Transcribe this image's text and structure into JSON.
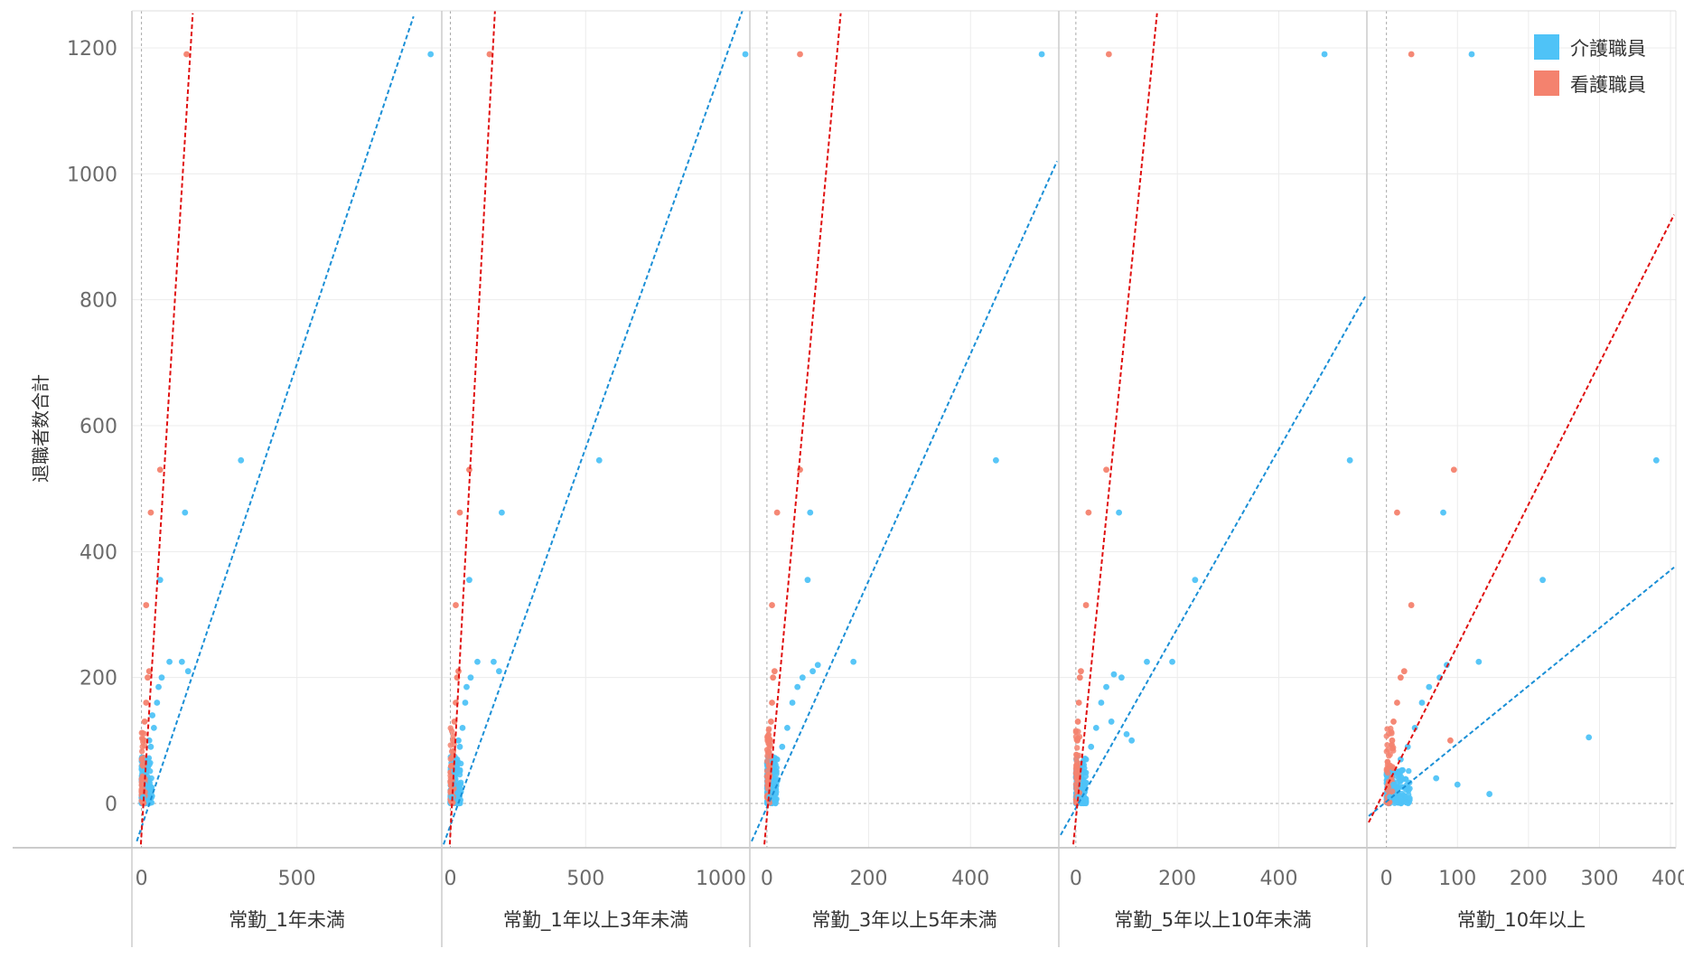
{
  "chart_data": {
    "type": "scatter",
    "ylabel": "退職者数合計",
    "ylim": [
      -65,
      1255
    ],
    "yticks": [
      0,
      200,
      400,
      600,
      800,
      1000,
      1200
    ],
    "grid": true,
    "legend": {
      "placement": "top-right",
      "items": [
        {
          "label": "介護職員",
          "color": "#4FC3F7"
        },
        {
          "label": "看護職員",
          "color": "#F4826E"
        }
      ]
    },
    "colors": {
      "care": "#4FC3F7",
      "nurse": "#F4826E",
      "care_trend": "#1A8FD6",
      "nurse_trend": "#E01010"
    },
    "panels": [
      {
        "xlabel": "常勤_1年未満",
        "xlim": [
          -25,
          960
        ],
        "xticks": [
          0,
          500
        ],
        "care_points": [
          [
            930,
            1190
          ],
          [
            320,
            545
          ],
          [
            140,
            462
          ],
          [
            60,
            355
          ],
          [
            90,
            225
          ],
          [
            130,
            225
          ],
          [
            150,
            210
          ],
          [
            65,
            200
          ],
          [
            55,
            185
          ],
          [
            50,
            160
          ],
          [
            40,
            120
          ],
          [
            30,
            90
          ],
          [
            20,
            70
          ],
          [
            15,
            50
          ],
          [
            10,
            30
          ],
          [
            5,
            10
          ],
          [
            8,
            60
          ],
          [
            25,
            100
          ],
          [
            35,
            140
          ]
        ],
        "nurse_points": [
          [
            145,
            1190
          ],
          [
            60,
            530
          ],
          [
            30,
            462
          ],
          [
            15,
            315
          ],
          [
            25,
            210
          ],
          [
            20,
            200
          ],
          [
            15,
            160
          ],
          [
            10,
            130
          ],
          [
            8,
            100
          ],
          [
            5,
            60
          ],
          [
            3,
            30
          ]
        ],
        "care_trend": [
          -15,
          -60,
          875,
          1250
        ],
        "nurse_trend": [
          -2,
          -65,
          165,
          1255
        ]
      },
      {
        "xlabel": "常勤_1年以上3年未満",
        "xlim": [
          -25,
          1100
        ],
        "xticks": [
          0,
          500,
          1000
        ],
        "care_points": [
          [
            1090,
            1190
          ],
          [
            550,
            545
          ],
          [
            190,
            462
          ],
          [
            70,
            355
          ],
          [
            100,
            225
          ],
          [
            160,
            225
          ],
          [
            180,
            210
          ],
          [
            75,
            200
          ],
          [
            60,
            185
          ],
          [
            55,
            160
          ],
          [
            45,
            120
          ],
          [
            35,
            90
          ],
          [
            25,
            70
          ],
          [
            15,
            50
          ],
          [
            10,
            30
          ],
          [
            5,
            10
          ],
          [
            30,
            100
          ]
        ],
        "nurse_points": [
          [
            145,
            1190
          ],
          [
            70,
            530
          ],
          [
            35,
            462
          ],
          [
            20,
            315
          ],
          [
            30,
            210
          ],
          [
            25,
            200
          ],
          [
            20,
            160
          ],
          [
            15,
            130
          ],
          [
            10,
            100
          ],
          [
            5,
            60
          ],
          [
            3,
            30
          ]
        ],
        "care_trend": [
          -25,
          -65,
          1080,
          1260
        ],
        "nurse_trend": [
          -2,
          -65,
          165,
          1260
        ]
      },
      {
        "xlabel": "常勤_3年以上5年未満",
        "xlim": [
          -30,
          570
        ],
        "xticks": [
          0,
          200,
          400
        ],
        "care_points": [
          [
            540,
            1190
          ],
          [
            450,
            545
          ],
          [
            85,
            462
          ],
          [
            80,
            355
          ],
          [
            170,
            225
          ],
          [
            100,
            220
          ],
          [
            90,
            210
          ],
          [
            70,
            200
          ],
          [
            60,
            185
          ],
          [
            50,
            160
          ],
          [
            40,
            120
          ],
          [
            30,
            90
          ],
          [
            20,
            70
          ],
          [
            15,
            50
          ],
          [
            10,
            30
          ],
          [
            5,
            10
          ]
        ],
        "nurse_points": [
          [
            65,
            1190
          ],
          [
            65,
            530
          ],
          [
            20,
            462
          ],
          [
            10,
            315
          ],
          [
            15,
            210
          ],
          [
            12,
            200
          ],
          [
            10,
            160
          ],
          [
            8,
            130
          ],
          [
            6,
            100
          ],
          [
            4,
            60
          ]
        ],
        "care_trend": [
          -30,
          -60,
          570,
          1020
        ],
        "nurse_trend": [
          -5,
          -65,
          145,
          1255
        ]
      },
      {
        "xlabel": "常勤_5年以上10年未満",
        "xlim": [
          -30,
          570
        ],
        "xticks": [
          0,
          200,
          400
        ],
        "care_points": [
          [
            490,
            1190
          ],
          [
            540,
            545
          ],
          [
            85,
            462
          ],
          [
            235,
            355
          ],
          [
            140,
            225
          ],
          [
            190,
            225
          ],
          [
            90,
            200
          ],
          [
            75,
            205
          ],
          [
            60,
            185
          ],
          [
            50,
            160
          ],
          [
            40,
            120
          ],
          [
            30,
            90
          ],
          [
            20,
            70
          ],
          [
            15,
            50
          ],
          [
            10,
            30
          ],
          [
            5,
            10
          ],
          [
            100,
            110
          ],
          [
            110,
            100
          ],
          [
            70,
            130
          ]
        ],
        "nurse_points": [
          [
            65,
            1190
          ],
          [
            60,
            530
          ],
          [
            25,
            462
          ],
          [
            20,
            315
          ],
          [
            10,
            210
          ],
          [
            8,
            200
          ],
          [
            6,
            160
          ],
          [
            4,
            130
          ],
          [
            3,
            100
          ],
          [
            2,
            60
          ]
        ],
        "care_trend": [
          -30,
          -50,
          570,
          805
        ],
        "nurse_trend": [
          -5,
          -65,
          160,
          1255
        ]
      },
      {
        "xlabel": "常勤_10年以上",
        "xlim": [
          -25,
          405
        ],
        "xticks": [
          0,
          100,
          200,
          300,
          400
        ],
        "care_points": [
          [
            120,
            1190
          ],
          [
            380,
            545
          ],
          [
            80,
            462
          ],
          [
            220,
            355
          ],
          [
            285,
            105
          ],
          [
            130,
            225
          ],
          [
            85,
            220
          ],
          [
            75,
            200
          ],
          [
            60,
            185
          ],
          [
            50,
            160
          ],
          [
            40,
            120
          ],
          [
            30,
            90
          ],
          [
            20,
            70
          ],
          [
            15,
            50
          ],
          [
            10,
            30
          ],
          [
            5,
            10
          ],
          [
            145,
            15
          ],
          [
            100,
            30
          ],
          [
            70,
            40
          ]
        ],
        "nurse_points": [
          [
            35,
            1190
          ],
          [
            95,
            530
          ],
          [
            15,
            462
          ],
          [
            35,
            315
          ],
          [
            25,
            210
          ],
          [
            20,
            200
          ],
          [
            15,
            160
          ],
          [
            10,
            130
          ],
          [
            8,
            100
          ],
          [
            90,
            100
          ],
          [
            5,
            60
          ]
        ],
        "care_trend": [
          -25,
          -20,
          405,
          375
        ],
        "nurse_trend": [
          -25,
          -30,
          405,
          935
        ]
      }
    ]
  }
}
